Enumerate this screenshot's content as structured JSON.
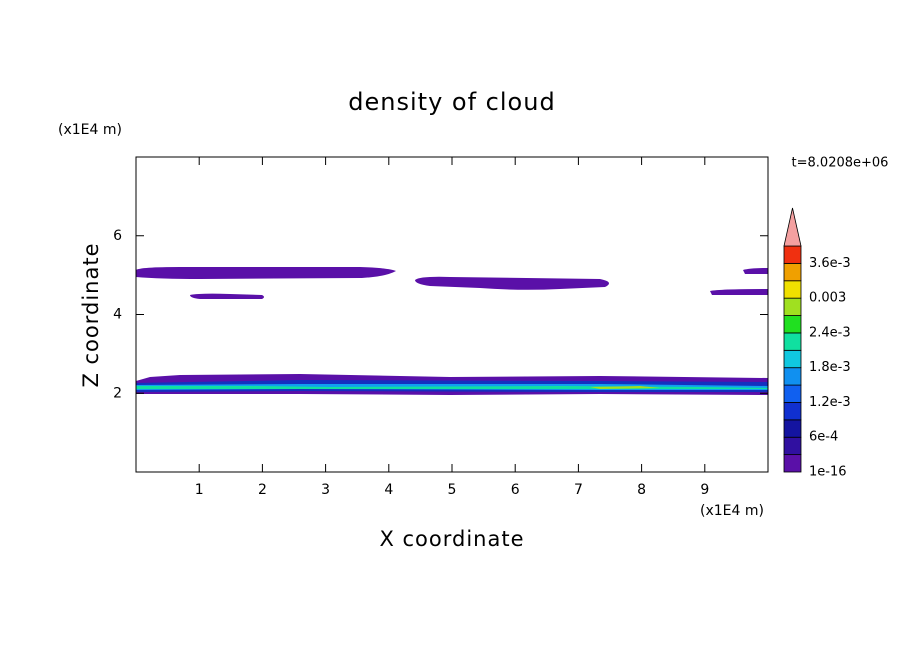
{
  "chart_data": {
    "type": "contour",
    "title": "density of cloud",
    "xlabel": "X coordinate",
    "ylabel": "Z coordinate",
    "xunit": "(x1E4 m)",
    "yunit": "(x1E4 m)",
    "time_label": "t=8.0208e+06",
    "xlim": [
      0,
      10
    ],
    "xticks": [
      1,
      2,
      3,
      4,
      5,
      6,
      7,
      8,
      9
    ],
    "ylim": [
      0,
      8
    ],
    "yticks": [
      2,
      4,
      6
    ],
    "colorbar": {
      "levels": [
        1e-16,
        0.0003,
        0.0006,
        0.0009,
        0.0012,
        0.0015,
        0.0018,
        0.0021,
        0.0024,
        0.0027,
        0.003,
        0.0033,
        0.0036,
        0.0039
      ],
      "colors": [
        "#5a10a8",
        "#3010a0",
        "#1414a0",
        "#1030d0",
        "#1060f0",
        "#1090f0",
        "#10c8e0",
        "#10e0a0",
        "#20e020",
        "#a0e020",
        "#f0e000",
        "#f0a000",
        "#f03010"
      ],
      "extend_color": "#f4a0a0",
      "ticks": [
        1e-16,
        {
          "value": 0.0006,
          "label": "6e-4"
        },
        {
          "value": 0.0012,
          "label": "1.2e-3"
        },
        {
          "value": 0.0018,
          "label": "1.8e-3"
        },
        {
          "value": 0.0024,
          "label": "2.4e-3"
        },
        0.003,
        {
          "value": 0.0036,
          "label": "3.6e-3"
        }
      ]
    }
  }
}
